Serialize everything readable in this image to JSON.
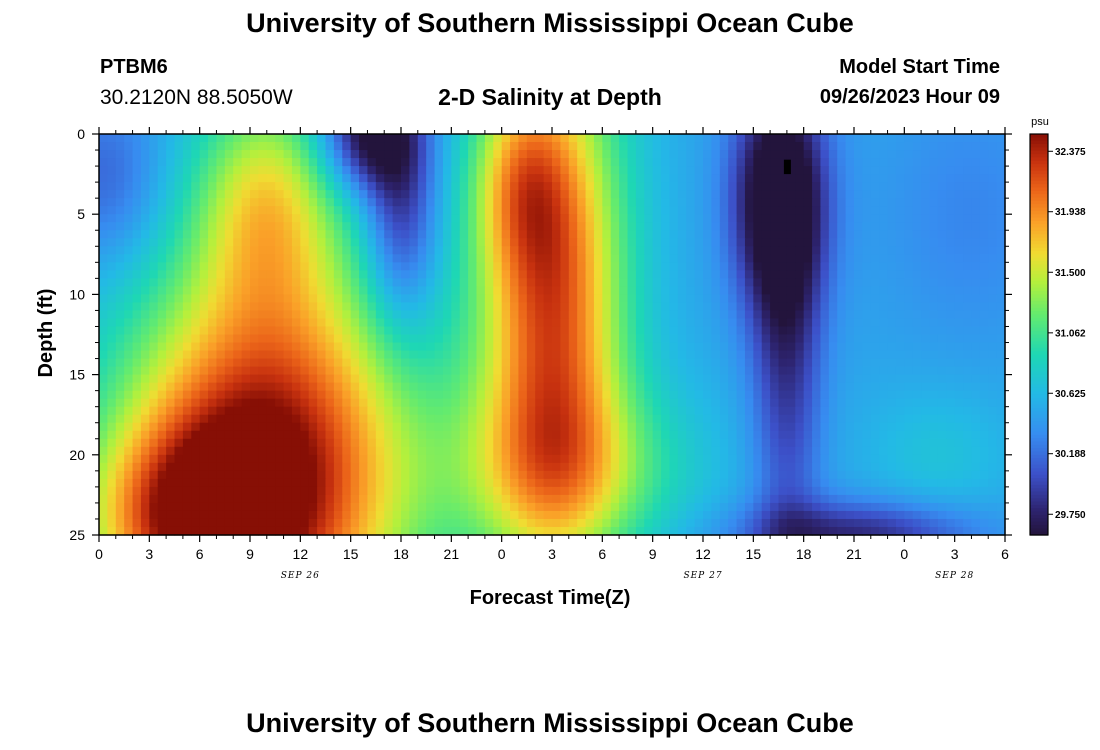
{
  "header": {
    "main_title": "University of Southern Mississippi Ocean Cube",
    "station_id": "PTBM6",
    "coords": "30.2120N  88.5050W",
    "plot_title": "2-D Salinity at Depth",
    "model_start_label": "Model Start Time",
    "model_start_value": "09/26/2023 Hour 09",
    "footer_title": "University of Southern Mississippi Ocean Cube"
  },
  "chart_data": {
    "type": "heatmap",
    "title": "2-D Salinity at Depth",
    "xlabel": "Forecast Time(Z)",
    "ylabel": "Depth (ft)",
    "x_range_hours": [
      0,
      54
    ],
    "y_range": [
      0,
      25
    ],
    "y_inverted": true,
    "x_tick_hours": [
      0,
      3,
      6,
      9,
      12,
      15,
      18,
      21,
      24,
      27,
      30,
      33,
      36,
      39,
      42,
      45,
      48,
      51,
      54
    ],
    "x_tick_labels": [
      "0",
      "3",
      "6",
      "9",
      "12",
      "15",
      "18",
      "21",
      "0",
      "3",
      "6",
      "9",
      "12",
      "15",
      "18",
      "21",
      "0",
      "3",
      "6"
    ],
    "date_labels": [
      {
        "label": "SEP 26",
        "hour": 12
      },
      {
        "label": "SEP 27",
        "hour": 36
      },
      {
        "label": "SEP 28",
        "hour": 51
      }
    ],
    "y_ticks": [
      0,
      5,
      10,
      15,
      20,
      25
    ],
    "y_tick_labels": [
      "0",
      "5",
      "10",
      "15",
      "20",
      "25"
    ],
    "colorbar": {
      "unit": "psu",
      "min": 29.6,
      "max": 32.5,
      "tick_values": [
        32.375,
        31.938,
        31.5,
        31.062,
        30.625,
        30.188,
        29.75
      ],
      "tick_labels": [
        "32.375",
        "31.938",
        "31.500",
        "31.062",
        "30.625",
        "30.188",
        "29.750"
      ]
    },
    "field": {
      "background": 30.5,
      "features": [
        {
          "kind": "high",
          "t": 10,
          "d": 21,
          "st": 6,
          "sd": 9,
          "amp": 2.1
        },
        {
          "kind": "high",
          "t": 5,
          "d": 24,
          "st": 4,
          "sd": 4,
          "amp": 1.0
        },
        {
          "kind": "high",
          "t": 10,
          "d": 4,
          "st": 3,
          "sd": 5,
          "amp": 0.9
        },
        {
          "kind": "high",
          "t": 27,
          "d": 10,
          "st": 3,
          "sd": 11,
          "amp": 1.7
        },
        {
          "kind": "high",
          "t": 28,
          "d": 21,
          "st": 5,
          "sd": 4,
          "amp": 0.7
        },
        {
          "kind": "high",
          "t": 25,
          "d": 3,
          "st": 2,
          "sd": 4,
          "amp": 0.6
        },
        {
          "kind": "low",
          "t": 16,
          "d": 0,
          "st": 2,
          "sd": 2.5,
          "amp": -1.0
        },
        {
          "kind": "low",
          "t": 18,
          "d": 5,
          "st": 1.5,
          "sd": 5,
          "amp": -0.7
        },
        {
          "kind": "low",
          "t": 40.5,
          "d": 4,
          "st": 2,
          "sd": 5,
          "amp": -1.1
        },
        {
          "kind": "low",
          "t": 41,
          "d": 14,
          "st": 1.5,
          "sd": 9,
          "amp": -0.6
        },
        {
          "kind": "low",
          "t": 45,
          "d": 25,
          "st": 5,
          "sd": 1.5,
          "amp": -0.7
        },
        {
          "kind": "low",
          "t": 0.5,
          "d": 3,
          "st": 2.5,
          "sd": 4,
          "amp": -0.4
        },
        {
          "kind": "low",
          "t": 52,
          "d": 5,
          "st": 4,
          "sd": 6,
          "amp": -0.2
        },
        {
          "kind": "high",
          "t": 50,
          "d": 20,
          "st": 3,
          "sd": 3,
          "amp": 0.2
        }
      ]
    },
    "marker": {
      "hour": 41,
      "depth_range": [
        1.6,
        2.5
      ]
    }
  }
}
